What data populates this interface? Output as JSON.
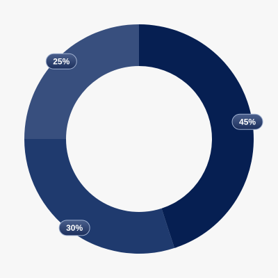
{
  "chart_data": {
    "type": "donut",
    "values": [
      45,
      30,
      25
    ],
    "value_labels": [
      "45%",
      "30%",
      "25%"
    ],
    "colors": [
      "#061f52",
      "#1f3a6e",
      "#384f7e"
    ]
  }
}
